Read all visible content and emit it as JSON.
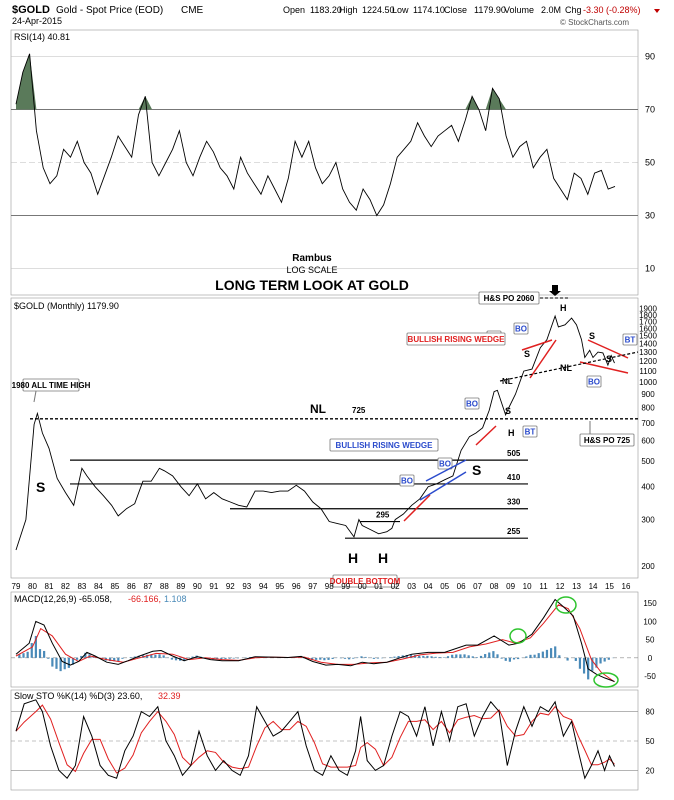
{
  "header": {
    "symbol": "$GOLD",
    "name": "Gold - Spot Price (EOD)",
    "exchange": "CME",
    "date": "24-Apr-2015",
    "open_label": "Open",
    "open": "1183.20",
    "high_label": "High",
    "high": "1224.50",
    "low_label": "Low",
    "low": "1174.10",
    "close_label": "Close",
    "close": "1179.90",
    "volume_label": "Volume",
    "volume": "2.0M",
    "chg_label": "Chg",
    "chg": "-3.30 (-0.28%)",
    "watermark": "© StockCharts.com"
  },
  "rsi": {
    "label": "RSI(14) 40.81",
    "levels": [
      90,
      70,
      50,
      30,
      10
    ],
    "overbought": 70,
    "oversold": 30,
    "fill_color": "#5a7a5a",
    "values": [
      72,
      84,
      91,
      62,
      48,
      42,
      45,
      55,
      52,
      58,
      50,
      46,
      38,
      45,
      52,
      60,
      56,
      52,
      68,
      75,
      50,
      45,
      50,
      55,
      62,
      50,
      45,
      52,
      58,
      54,
      48,
      45,
      40,
      52,
      46,
      42,
      38,
      45,
      40,
      35,
      44,
      58,
      52,
      58,
      48,
      42,
      45,
      50,
      40,
      35,
      32,
      40,
      36,
      30,
      34,
      42,
      52,
      55,
      58,
      65,
      60,
      56,
      60,
      62,
      64,
      58,
      66,
      75,
      70,
      62,
      78,
      74,
      60,
      52,
      56,
      58,
      48,
      52,
      55,
      44,
      40,
      36,
      46,
      44,
      38,
      46,
      47,
      40,
      41
    ]
  },
  "titles": {
    "author": "Rambus",
    "scale": "LOG SCALE",
    "main": "LONG TERM LOOK AT GOLD"
  },
  "price": {
    "label": "$GOLD (Monthly) 1179.90",
    "y_ticks": [
      1900,
      1800,
      1700,
      1600,
      1500,
      1400,
      1300,
      1200,
      1100,
      1000,
      900,
      800,
      700,
      600,
      500,
      400,
      300,
      200
    ],
    "years": [
      "79",
      "80",
      "81",
      "82",
      "83",
      "84",
      "85",
      "86",
      "87",
      "88",
      "89",
      "90",
      "91",
      "92",
      "93",
      "94",
      "95",
      "96",
      "97",
      "98",
      "99",
      "00",
      "01",
      "02",
      "03",
      "04",
      "05",
      "06",
      "07",
      "08",
      "09",
      "10",
      "11",
      "12",
      "13",
      "14",
      "15",
      "16"
    ],
    "close_series": [
      [
        1979,
        230
      ],
      [
        1979.6,
        300
      ],
      [
        1980.1,
        690
      ],
      [
        1980.3,
        760
      ],
      [
        1980.6,
        640
      ],
      [
        1981,
        560
      ],
      [
        1981.5,
        430
      ],
      [
        1982,
        380
      ],
      [
        1982.5,
        340
      ],
      [
        1983,
        470
      ],
      [
        1983.3,
        440
      ],
      [
        1983.8,
        400
      ],
      [
        1984.3,
        370
      ],
      [
        1984.8,
        340
      ],
      [
        1985.2,
        310
      ],
      [
        1985.7,
        330
      ],
      [
        1986.2,
        345
      ],
      [
        1986.7,
        420
      ],
      [
        1987.2,
        420
      ],
      [
        1987.7,
        470
      ],
      [
        1988,
        460
      ],
      [
        1988.5,
        440
      ],
      [
        1989,
        400
      ],
      [
        1989.5,
        370
      ],
      [
        1990,
        410
      ],
      [
        1990.5,
        360
      ],
      [
        1991,
        380
      ],
      [
        1991.5,
        360
      ],
      [
        1992,
        350
      ],
      [
        1992.5,
        340
      ],
      [
        1993,
        335
      ],
      [
        1993.5,
        385
      ],
      [
        1994,
        385
      ],
      [
        1994.5,
        380
      ],
      [
        1995,
        385
      ],
      [
        1995.5,
        385
      ],
      [
        1996,
        405
      ],
      [
        1996.5,
        385
      ],
      [
        1997,
        350
      ],
      [
        1997.5,
        330
      ],
      [
        1998,
        295
      ],
      [
        1998.5,
        290
      ],
      [
        1999,
        285
      ],
      [
        1999.5,
        258
      ],
      [
        1999.8,
        300
      ],
      [
        2000,
        285
      ],
      [
        2000.5,
        275
      ],
      [
        2001,
        265
      ],
      [
        2001.5,
        270
      ],
      [
        2001.8,
        278
      ],
      [
        2002,
        300
      ],
      [
        2002.5,
        315
      ],
      [
        2003,
        340
      ],
      [
        2003.5,
        360
      ],
      [
        2004,
        400
      ],
      [
        2004.5,
        410
      ],
      [
        2005,
        425
      ],
      [
        2005.5,
        440
      ],
      [
        2006,
        550
      ],
      [
        2006.5,
        620
      ],
      [
        2006.9,
        640
      ],
      [
        2007.3,
        670
      ],
      [
        2007.7,
        780
      ],
      [
        2008,
        920
      ],
      [
        2008.2,
        930
      ],
      [
        2008.7,
        750
      ],
      [
        2008.9,
        800
      ],
      [
        2009.3,
        900
      ],
      [
        2009.8,
        1100
      ],
      [
        2010.3,
        1120
      ],
      [
        2010.8,
        1350
      ],
      [
        2011.2,
        1450
      ],
      [
        2011.7,
        1780
      ],
      [
        2011.9,
        1620
      ],
      [
        2012.3,
        1650
      ],
      [
        2012.7,
        1750
      ],
      [
        2013,
        1650
      ],
      [
        2013.3,
        1450
      ],
      [
        2013.5,
        1240
      ],
      [
        2013.8,
        1320
      ],
      [
        2014,
        1240
      ],
      [
        2014.3,
        1300
      ],
      [
        2014.6,
        1290
      ],
      [
        2014.9,
        1160
      ],
      [
        2015.1,
        1260
      ],
      [
        2015.3,
        1180
      ]
    ],
    "levels": [
      {
        "label": "NL",
        "value": 725
      },
      {
        "label": "505",
        "value": 505
      },
      {
        "label": "410",
        "value": 410
      },
      {
        "label": "330",
        "value": 330
      },
      {
        "label": "295",
        "value": 295
      },
      {
        "label": "255",
        "value": 255
      }
    ],
    "annotations": {
      "ath": "1980 ALL TIME HIGH",
      "s": "S",
      "h": "H",
      "double_bottom": "DOUBLE BOTTOM",
      "bo": "BO",
      "bt": "BT",
      "brw": "BULLISH RISING WEDGE",
      "hs_po_2060": "H&S PO 2060",
      "hs_po_725": "H&S PO 725",
      "nl": "NL",
      "v725": "725"
    }
  },
  "macd": {
    "label": "MACD(12,26,9) -65.058,",
    "signal_val": "-66.166,",
    "hist_val": "1.108",
    "y_ticks": [
      150,
      100,
      50,
      0,
      -50
    ],
    "macd_color": "#000000",
    "signal_color": "#e02020",
    "hist_color": "#4a8ab8",
    "macd_series": [
      [
        1979,
        10
      ],
      [
        1979.8,
        40
      ],
      [
        1980.2,
        100
      ],
      [
        1980.7,
        90
      ],
      [
        1981.2,
        40
      ],
      [
        1981.8,
        -10
      ],
      [
        1982.3,
        -20
      ],
      [
        1982.8,
        -10
      ],
      [
        1983.3,
        15
      ],
      [
        1983.8,
        5
      ],
      [
        1984.5,
        -12
      ],
      [
        1985.2,
        -18
      ],
      [
        1985.8,
        -8
      ],
      [
        1986.5,
        5
      ],
      [
        1987.3,
        18
      ],
      [
        1987.8,
        20
      ],
      [
        1988.5,
        5
      ],
      [
        1989.2,
        -8
      ],
      [
        1990,
        3
      ],
      [
        1990.8,
        -5
      ],
      [
        1991.5,
        -8
      ],
      [
        1992.5,
        -8
      ],
      [
        1993.5,
        3
      ],
      [
        1994.5,
        2
      ],
      [
        1995.5,
        1
      ],
      [
        1996.3,
        4
      ],
      [
        1997,
        -10
      ],
      [
        1997.8,
        -20
      ],
      [
        1998.5,
        -18
      ],
      [
        1999.3,
        -22
      ],
      [
        2000,
        -12
      ],
      [
        2000.7,
        -16
      ],
      [
        2001.5,
        -12
      ],
      [
        2002.3,
        0
      ],
      [
        2003,
        10
      ],
      [
        2004,
        15
      ],
      [
        2005,
        15
      ],
      [
        2006.3,
        35
      ],
      [
        2007,
        35
      ],
      [
        2008,
        60
      ],
      [
        2008.9,
        35
      ],
      [
        2009.5,
        40
      ],
      [
        2010.3,
        65
      ],
      [
        2011,
        110
      ],
      [
        2011.7,
        160
      ],
      [
        2012.2,
        140
      ],
      [
        2012.8,
        115
      ],
      [
        2013.3,
        40
      ],
      [
        2013.7,
        -30
      ],
      [
        2014.2,
        -45
      ],
      [
        2014.7,
        -55
      ],
      [
        2015.3,
        -65
      ]
    ],
    "signal_series": [
      [
        1979,
        5
      ],
      [
        1980,
        30
      ],
      [
        1980.5,
        80
      ],
      [
        1981.2,
        60
      ],
      [
        1982,
        10
      ],
      [
        1982.8,
        -10
      ],
      [
        1983.5,
        5
      ],
      [
        1984.5,
        -5
      ],
      [
        1985.5,
        -12
      ],
      [
        1986.5,
        0
      ],
      [
        1987.5,
        12
      ],
      [
        1988.5,
        10
      ],
      [
        1989.5,
        -5
      ],
      [
        1990.5,
        0
      ],
      [
        1991.5,
        -5
      ],
      [
        1992.5,
        -7
      ],
      [
        1993.5,
        0
      ],
      [
        1994.5,
        2
      ],
      [
        1995.5,
        1
      ],
      [
        1996.5,
        2
      ],
      [
        1997.5,
        -12
      ],
      [
        1998.5,
        -18
      ],
      [
        1999.5,
        -18
      ],
      [
        2000.5,
        -14
      ],
      [
        2001.5,
        -12
      ],
      [
        2002.5,
        -3
      ],
      [
        2003.5,
        8
      ],
      [
        2004.5,
        13
      ],
      [
        2005.5,
        15
      ],
      [
        2006.5,
        30
      ],
      [
        2007.5,
        38
      ],
      [
        2008.5,
        50
      ],
      [
        2009.3,
        40
      ],
      [
        2010.2,
        55
      ],
      [
        2011,
        95
      ],
      [
        2011.9,
        145
      ],
      [
        2012.5,
        135
      ],
      [
        2013.2,
        80
      ],
      [
        2013.9,
        -5
      ],
      [
        2014.5,
        -40
      ],
      [
        2015.3,
        -66
      ]
    ]
  },
  "sto": {
    "label": "Slow STO %K(14) %D(3) 23.60,",
    "d_val": "32.39",
    "y_ticks": [
      80,
      50,
      20
    ],
    "k_color": "#000000",
    "d_color": "#e02020",
    "k_series": [
      [
        1979,
        60
      ],
      [
        1979.5,
        88
      ],
      [
        1980.2,
        92
      ],
      [
        1980.6,
        80
      ],
      [
        1981.1,
        45
      ],
      [
        1981.6,
        20
      ],
      [
        1982.1,
        12
      ],
      [
        1982.6,
        25
      ],
      [
        1983.1,
        75
      ],
      [
        1983.6,
        55
      ],
      [
        1984.1,
        25
      ],
      [
        1984.6,
        15
      ],
      [
        1985.1,
        12
      ],
      [
        1985.6,
        40
      ],
      [
        1986.1,
        55
      ],
      [
        1986.6,
        80
      ],
      [
        1987.1,
        75
      ],
      [
        1987.6,
        85
      ],
      [
        1988.1,
        50
      ],
      [
        1988.6,
        35
      ],
      [
        1989.1,
        15
      ],
      [
        1989.6,
        25
      ],
      [
        1990.1,
        60
      ],
      [
        1990.6,
        35
      ],
      [
        1991.1,
        20
      ],
      [
        1991.6,
        30
      ],
      [
        1992.1,
        20
      ],
      [
        1992.6,
        15
      ],
      [
        1993.1,
        35
      ],
      [
        1993.6,
        85
      ],
      [
        1994.1,
        70
      ],
      [
        1994.6,
        55
      ],
      [
        1995.1,
        60
      ],
      [
        1995.6,
        70
      ],
      [
        1996.1,
        80
      ],
      [
        1996.6,
        45
      ],
      [
        1997.1,
        20
      ],
      [
        1997.6,
        15
      ],
      [
        1998.1,
        35
      ],
      [
        1998.6,
        20
      ],
      [
        1999.1,
        15
      ],
      [
        1999.6,
        40
      ],
      [
        1999.9,
        75
      ],
      [
        2000.3,
        30
      ],
      [
        2000.8,
        20
      ],
      [
        2001.3,
        25
      ],
      [
        2001.8,
        55
      ],
      [
        2002.3,
        80
      ],
      [
        2002.8,
        75
      ],
      [
        2003.3,
        55
      ],
      [
        2003.8,
        85
      ],
      [
        2004.3,
        45
      ],
      [
        2004.8,
        80
      ],
      [
        2005.3,
        50
      ],
      [
        2005.8,
        85
      ],
      [
        2006.3,
        88
      ],
      [
        2006.8,
        55
      ],
      [
        2007.3,
        75
      ],
      [
        2007.8,
        90
      ],
      [
        2008.3,
        80
      ],
      [
        2008.8,
        25
      ],
      [
        2009.3,
        60
      ],
      [
        2009.8,
        85
      ],
      [
        2010.3,
        65
      ],
      [
        2010.8,
        85
      ],
      [
        2011.3,
        80
      ],
      [
        2011.7,
        90
      ],
      [
        2012.2,
        55
      ],
      [
        2012.7,
        70
      ],
      [
        2013.1,
        40
      ],
      [
        2013.5,
        12
      ],
      [
        2013.9,
        25
      ],
      [
        2014.3,
        40
      ],
      [
        2014.7,
        20
      ],
      [
        2015.0,
        35
      ],
      [
        2015.3,
        24
      ]
    ]
  }
}
